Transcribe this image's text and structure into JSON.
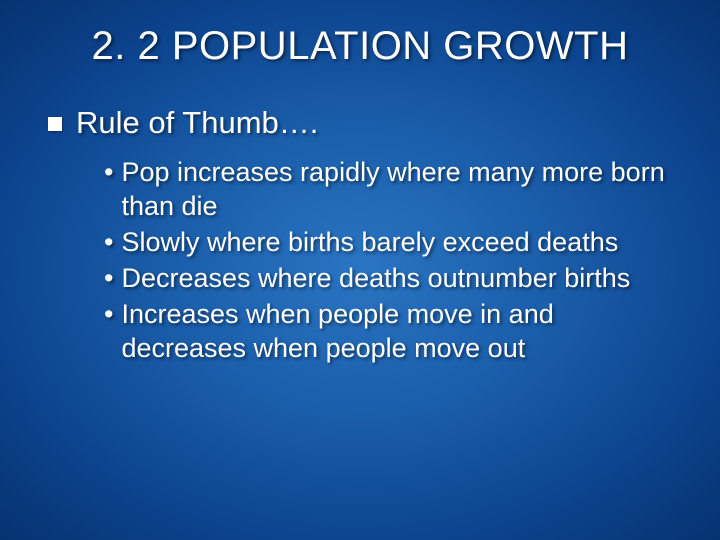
{
  "slide": {
    "title": "2. 2 POPULATION GROWTH",
    "heading": "Rule of Thumb….",
    "bullets": [
      "Pop increases rapidly where many more born than die",
      "Slowly where births barely exceed deaths",
      "Decreases where deaths outnumber births",
      "Increases when people move in and decreases when people move out"
    ],
    "colors": {
      "background_center": "#2975c4",
      "background_edge": "#063270",
      "text_color": "#ffffff",
      "bullet_color": "#ffffff"
    },
    "typography": {
      "title_fontsize": 40,
      "heading_fontsize": 31,
      "bullet_fontsize": 27,
      "title_font": "Arial",
      "body_font": "Verdana"
    }
  }
}
